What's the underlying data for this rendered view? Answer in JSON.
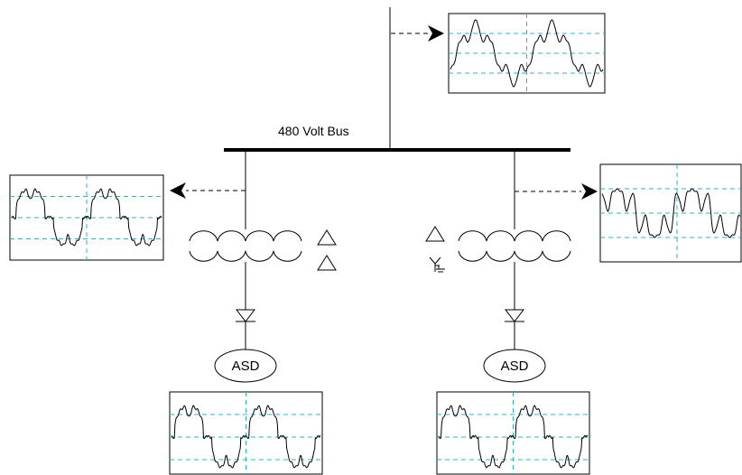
{
  "bus": {
    "label": "480 Volt Bus"
  },
  "loads": [
    {
      "label": "ASD"
    },
    {
      "label": "ASD"
    }
  ],
  "colors": {
    "grid": "#2bb5c4",
    "line": "#000000"
  },
  "icons": {
    "delta": "delta-winding-icon",
    "wye_grounded": "wye-grounded-winding-icon",
    "diode": "diode-icon"
  }
}
